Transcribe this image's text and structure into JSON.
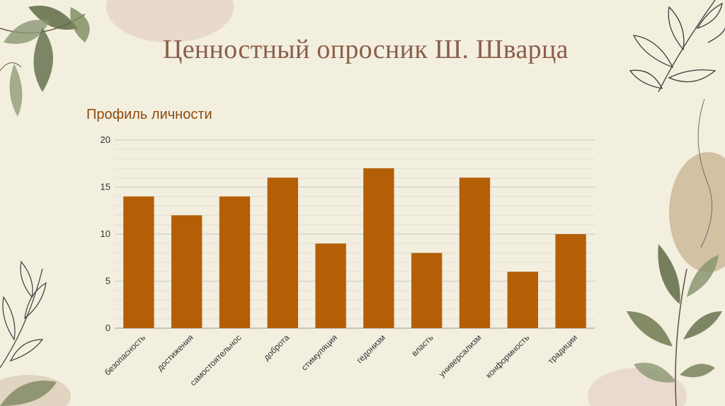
{
  "slide": {
    "title": "Ценностный опросник Ш. Шварца"
  },
  "decor": {
    "leaf_dark": "#5f6b45",
    "leaf_light": "#8a9670",
    "blob_pink": "#e6d3cb",
    "blob_tan": "#cdb99a",
    "line_art": "#3b3b3b"
  },
  "chart_data": {
    "type": "bar",
    "title": "Профиль личности",
    "categories": [
      "безопасность",
      "достижения",
      "самостоятельнос",
      "доброта",
      "стимуляция",
      "гедонизм",
      "власть",
      "универсализм",
      "конформность",
      "традиции"
    ],
    "values": [
      14,
      12,
      14,
      16,
      9,
      17,
      8,
      16,
      6,
      10
    ],
    "ylim": [
      0,
      20
    ],
    "yticks": [
      0,
      5,
      10,
      15,
      20
    ],
    "bar_color": "#b45f06",
    "grid": true,
    "xlabel": "",
    "ylabel": ""
  }
}
